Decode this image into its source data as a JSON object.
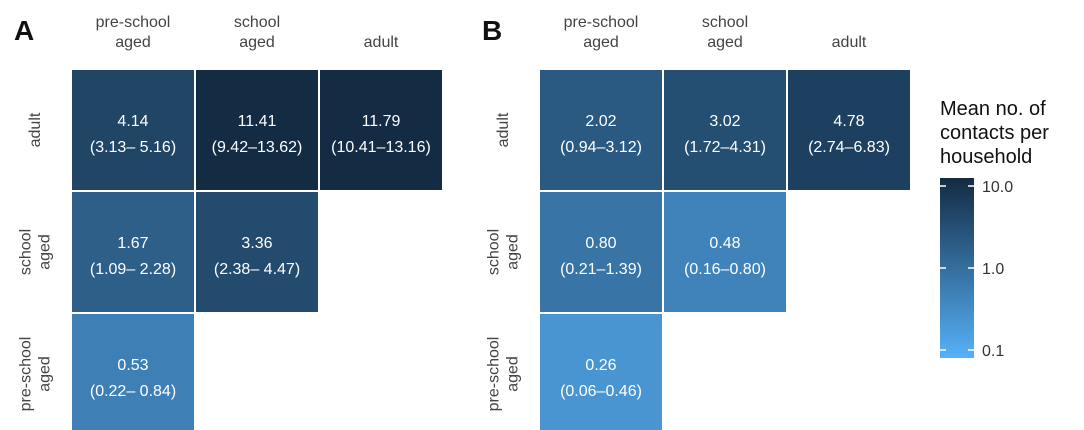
{
  "chart_data": [
    {
      "type": "heatmap",
      "panel_label": "A",
      "column_categories": [
        "pre-school\naged",
        "school\naged",
        "adult"
      ],
      "row_categories": [
        "adult",
        "school\naged",
        "pre-school\naged"
      ],
      "cells": [
        {
          "row": 0,
          "col": 0,
          "value": 4.14,
          "value_label": "4.14",
          "ci_label": "(3.13– 5.16)"
        },
        {
          "row": 0,
          "col": 1,
          "value": 11.41,
          "value_label": "11.41",
          "ci_label": "(9.42–13.62)"
        },
        {
          "row": 0,
          "col": 2,
          "value": 11.79,
          "value_label": "11.79",
          "ci_label": "(10.41–13.16)"
        },
        {
          "row": 1,
          "col": 0,
          "value": 1.67,
          "value_label": "1.67",
          "ci_label": "(1.09– 2.28)"
        },
        {
          "row": 1,
          "col": 1,
          "value": 3.36,
          "value_label": "3.36",
          "ci_label": "(2.38– 4.47)"
        },
        {
          "row": 2,
          "col": 0,
          "value": 0.53,
          "value_label": "0.53",
          "ci_label": "(0.22– 0.84)"
        }
      ]
    },
    {
      "type": "heatmap",
      "panel_label": "B",
      "column_categories": [
        "pre-school\naged",
        "school\naged",
        "adult"
      ],
      "row_categories": [
        "adult",
        "school\naged",
        "pre-school\naged"
      ],
      "cells": [
        {
          "row": 0,
          "col": 0,
          "value": 2.02,
          "value_label": "2.02",
          "ci_label": "(0.94–3.12)"
        },
        {
          "row": 0,
          "col": 1,
          "value": 3.02,
          "value_label": "3.02",
          "ci_label": "(1.72–4.31)"
        },
        {
          "row": 0,
          "col": 2,
          "value": 4.78,
          "value_label": "4.78",
          "ci_label": "(2.74–6.83)"
        },
        {
          "row": 1,
          "col": 0,
          "value": 0.8,
          "value_label": "0.80",
          "ci_label": "(0.21–1.39)"
        },
        {
          "row": 1,
          "col": 1,
          "value": 0.48,
          "value_label": "0.48",
          "ci_label": "(0.16–0.80)"
        },
        {
          "row": 2,
          "col": 0,
          "value": 0.26,
          "value_label": "0.26",
          "ci_label": "(0.06–0.46)"
        }
      ]
    }
  ],
  "legend": {
    "title": "Mean no. of\ncontacts per\nhousehold",
    "scale": "log",
    "range": [
      0.1,
      10.0
    ],
    "ticks": [
      {
        "value": 10.0,
        "label": "10.0"
      },
      {
        "value": 1.0,
        "label": "1.0"
      },
      {
        "value": 0.1,
        "label": "0.1"
      }
    ],
    "color_low": "#56B1F7",
    "color_high": "#132B43"
  }
}
